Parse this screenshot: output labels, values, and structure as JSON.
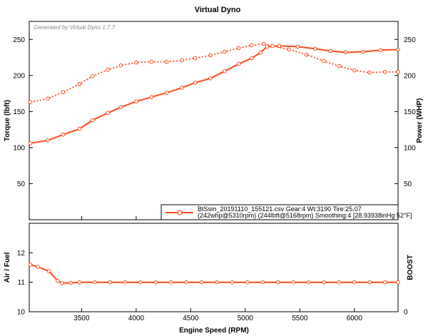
{
  "watermark": "Generated by Virtual Dyno 1.7.7",
  "colors": {
    "series": "#ff4a1c",
    "axis": "#000000"
  },
  "legend": {
    "line1": "BtSsm_20191110_155121.csv Gear:4 Wt:3190 Tire:25.07",
    "line2": "(242whp@5310rpm) (244lbft@5168rpm) Smoothing:4 [28.93938inHg 52°F]"
  },
  "chart_data": [
    {
      "type": "line",
      "title": "Virtual Dyno",
      "xlabel": "Engine Speed (RPM)",
      "ylabel": "Torque (lbft)",
      "y2label": "Power (WHP)",
      "xlim": [
        3020,
        6400
      ],
      "ylim": [
        0,
        275
      ],
      "x_ticks": [
        3500,
        4000,
        4500,
        5000,
        5500,
        6000
      ],
      "x_tick_labels": [
        "3500",
        "4000",
        "4500",
        "5000",
        "5500",
        "6000"
      ],
      "y_ticks": [
        50,
        100,
        150,
        200,
        250
      ],
      "y_tick_labels": [
        "50",
        "100",
        "150",
        "200",
        "250"
      ],
      "y2_ticks": [
        50,
        100,
        150,
        200,
        250
      ],
      "y2_tick_labels": [
        "50",
        "100",
        "150",
        "200",
        "250"
      ],
      "legend_position": "bottom-right",
      "series": [
        {
          "style": "solid",
          "axis": "left",
          "x": [
            3030,
            3190,
            3330,
            3480,
            3600,
            3740,
            3860,
            4000,
            4140,
            4280,
            4420,
            4540,
            4680,
            4810,
            4940,
            5060,
            5140,
            5200,
            5310,
            5480,
            5640,
            5780,
            5920,
            6080,
            6240,
            6400
          ],
          "y": [
            106,
            110,
            118,
            126,
            138,
            148,
            156,
            164,
            170,
            176,
            183,
            190,
            196,
            206,
            216,
            224,
            232,
            240,
            241,
            240,
            237,
            234,
            232,
            233,
            235,
            236
          ]
        },
        {
          "style": "dotted",
          "axis": "right",
          "x": [
            3030,
            3190,
            3330,
            3480,
            3600,
            3740,
            3860,
            4000,
            4140,
            4280,
            4420,
            4540,
            4680,
            4810,
            4940,
            5060,
            5168,
            5250,
            5400,
            5560,
            5720,
            5860,
            6000,
            6140,
            6280,
            6400
          ],
          "y": [
            163,
            168,
            177,
            188,
            199,
            208,
            214,
            218,
            219,
            219,
            221,
            224,
            228,
            233,
            238,
            242,
            244,
            241,
            236,
            229,
            220,
            213,
            207,
            204,
            205,
            205
          ]
        }
      ]
    },
    {
      "type": "line",
      "xlabel": "Engine Speed (RPM)",
      "ylabel": "Air / Fuel",
      "y2label": "BOOST",
      "xlim": [
        3020,
        6400
      ],
      "ylim": [
        10,
        13
      ],
      "x_ticks": [
        3500,
        4000,
        4500,
        5000,
        5500,
        6000
      ],
      "x_tick_labels": [
        "3500",
        "4000",
        "4500",
        "5000",
        "5500",
        "6000"
      ],
      "y_ticks": [
        10,
        11,
        12
      ],
      "y_tick_labels": [
        "10",
        "11",
        "12"
      ],
      "y2_ticks": [
        0
      ],
      "y2_tick_labels": [
        "0"
      ],
      "series": [
        {
          "style": "solid",
          "axis": "left",
          "x": [
            3030,
            3100,
            3200,
            3280,
            3320,
            3400,
            3480,
            3620,
            3760,
            3900,
            4040,
            4180,
            4320,
            4460,
            4600,
            4740,
            4880,
            5020,
            5160,
            5300,
            5440,
            5580,
            5720,
            5860,
            6000,
            6140,
            6280,
            6400
          ],
          "y": [
            11.6,
            11.52,
            11.38,
            11.05,
            10.97,
            10.98,
            11.0,
            11.0,
            11.0,
            11.0,
            11.0,
            11.0,
            11.0,
            11.0,
            11.0,
            11.0,
            11.0,
            11.0,
            11.0,
            11.0,
            11.0,
            11.0,
            11.0,
            11.0,
            11.0,
            11.0,
            11.0,
            11.0
          ]
        }
      ]
    }
  ]
}
